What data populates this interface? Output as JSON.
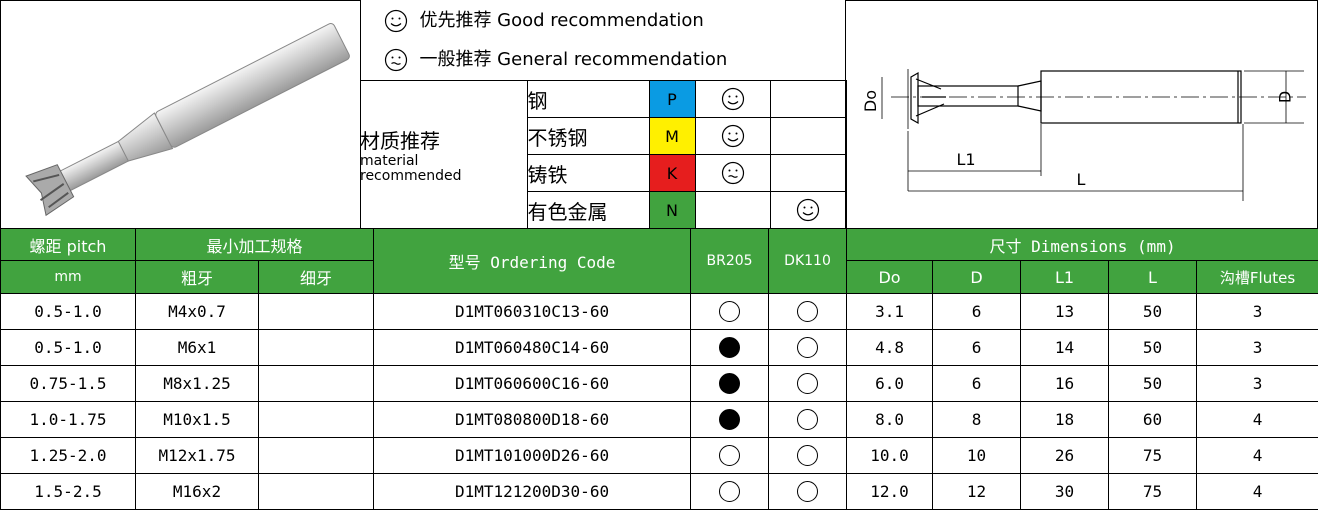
{
  "legend": {
    "good": "优先推荐 Good recommendation",
    "general": "一般推荐 General recommendation"
  },
  "materials": {
    "label_cn": "材质推荐",
    "label_en": "material recommended",
    "rows": [
      {
        "name": "钢",
        "grade": "P"
      },
      {
        "name": "不锈钢",
        "grade": "M"
      },
      {
        "name": "铸铁",
        "grade": "K"
      },
      {
        "name": "有色金属",
        "grade": "N"
      }
    ]
  },
  "drawing": {
    "do": "Do",
    "d": "D",
    "l1": "L1",
    "l": "L"
  },
  "table": {
    "header": {
      "pitch": "螺距 pitch",
      "pitch_unit": "mm",
      "min_spec": "最小加工规格",
      "coarse": "粗牙",
      "fine": "细牙",
      "code": "型号 Ordering Code",
      "br205": "BR205",
      "dk110": "DK110",
      "dimensions": "尺寸 Dimensions (mm)",
      "do": "Do",
      "d": "D",
      "l1": "L1",
      "l": "L",
      "flutes": "沟槽Flutes"
    },
    "rows": [
      {
        "pitch": "0.5-1.0",
        "coarse": "M4x0.7",
        "code": "D1MT060310C13-60",
        "do": "3.1",
        "d": "6",
        "l1": "13",
        "l": "50",
        "flutes": "3"
      },
      {
        "pitch": "0.5-1.0",
        "coarse": "M6x1",
        "code": "D1MT060480C14-60",
        "do": "4.8",
        "d": "6",
        "l1": "14",
        "l": "50",
        "flutes": "3"
      },
      {
        "pitch": "0.75-1.5",
        "coarse": "M8x1.25",
        "code": "D1MT060600C16-60",
        "do": "6.0",
        "d": "6",
        "l1": "16",
        "l": "50",
        "flutes": "3"
      },
      {
        "pitch": "1.0-1.75",
        "coarse": "M10x1.5",
        "code": "D1MT080800D18-60",
        "do": "8.0",
        "d": "8",
        "l1": "18",
        "l": "60",
        "flutes": "4"
      },
      {
        "pitch": "1.25-2.0",
        "coarse": "M12x1.75",
        "code": "D1MT101000D26-60",
        "do": "10.0",
        "d": "10",
        "l1": "26",
        "l": "75",
        "flutes": "4"
      },
      {
        "pitch": "1.5-2.5",
        "coarse": "M16x2",
        "code": "D1MT121200D30-60",
        "do": "12.0",
        "d": "12",
        "l1": "30",
        "l": "75",
        "flutes": "4"
      }
    ]
  }
}
